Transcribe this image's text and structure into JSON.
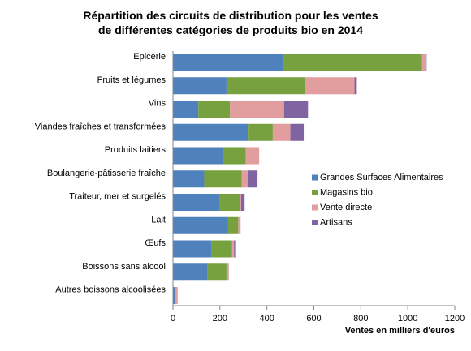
{
  "chart_data": {
    "type": "bar",
    "orientation": "horizontal",
    "stacked": true,
    "title_lines": [
      "Répartition des circuits de distribution pour les ventes",
      "de différentes catégories de produits bio en 2014"
    ],
    "xlabel": "Ventes en milliers d'euros",
    "xlim": [
      0,
      1200
    ],
    "xticks": [
      0,
      200,
      400,
      600,
      800,
      1000,
      1200
    ],
    "grid": false,
    "legend_position": "right",
    "categories": [
      "Epicerie",
      "Fruits et légumes",
      "Vins",
      "Viandes fraîches et transformées",
      "Produits laitiers",
      "Boulangerie-pâtisserie fraîche",
      "Traiteur, mer et surgelés",
      "Lait",
      "Œufs",
      "Boissons sans alcool",
      "Autres boissons alcoolisées"
    ],
    "series": [
      {
        "name": "Grandes Surfaces Alimentaires",
        "color": "#4f81bd",
        "values": [
          473,
          228,
          108,
          322,
          213,
          133,
          200,
          235,
          165,
          148,
          8
        ]
      },
      {
        "name": "Magasins bio",
        "color": "#77a03f",
        "values": [
          587,
          335,
          135,
          103,
          97,
          160,
          85,
          43,
          87,
          80,
          2
        ]
      },
      {
        "name": "Vente directe",
        "color": "#e29d9e",
        "values": [
          15,
          210,
          230,
          75,
          57,
          25,
          5,
          10,
          8,
          10,
          10
        ]
      },
      {
        "name": "Artisans",
        "color": "#8064a2",
        "values": [
          5,
          10,
          102,
          57,
          0,
          42,
          15,
          0,
          5,
          0,
          0
        ]
      }
    ]
  }
}
